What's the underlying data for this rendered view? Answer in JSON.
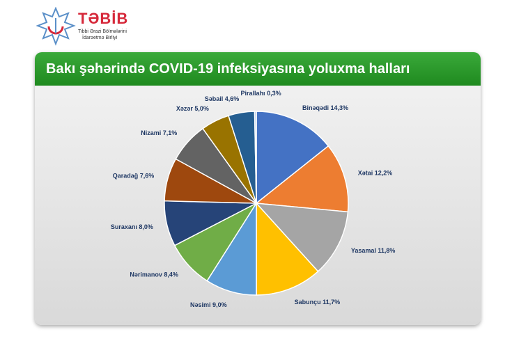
{
  "logo": {
    "brand": "TƏBİB",
    "subtitle_line1": "Tibbi Ərazi Bölmələrini",
    "subtitle_line2": "İdarəetmə Birliyi"
  },
  "chart_data": {
    "type": "pie",
    "title": "Bakı şəhərində COVID-19 infeksiyasına yoluxma halları",
    "start": "top",
    "direction": "clockwise",
    "categories": [
      "Binəqədi",
      "Xətai",
      "Yasamal",
      "Sabunçu",
      "Nəsimi",
      "Nərimanov",
      "Suraxanı",
      "Qaradağ",
      "Nizami",
      "Xəzər",
      "Səbail",
      "Pirallahı"
    ],
    "values": [
      14.3,
      12.2,
      11.8,
      11.7,
      9.0,
      8.4,
      8.0,
      7.6,
      7.1,
      5.0,
      4.6,
      0.3
    ],
    "labels": [
      "Binəqədi 14,3%",
      "Xətai 12,2%",
      "Yasamal 11,8%",
      "Sabunçu 11,7%",
      "Nəsimi 9,0%",
      "Nərimanov 8,4%",
      "Suraxanı 8,0%",
      "Qaradağ 7,6%",
      "Nizami 7,1%",
      "Xəzər 5,0%",
      "Səbail 4,6%",
      "Pirallahı 0,3%"
    ],
    "colors": [
      "#4472c4",
      "#ed7d31",
      "#a5a5a5",
      "#ffc000",
      "#5b9bd5",
      "#70ad47",
      "#264478",
      "#9e480e",
      "#636363",
      "#997300",
      "#255e91",
      "#a9c4e8"
    ],
    "header_color": "#2a9a2a"
  }
}
